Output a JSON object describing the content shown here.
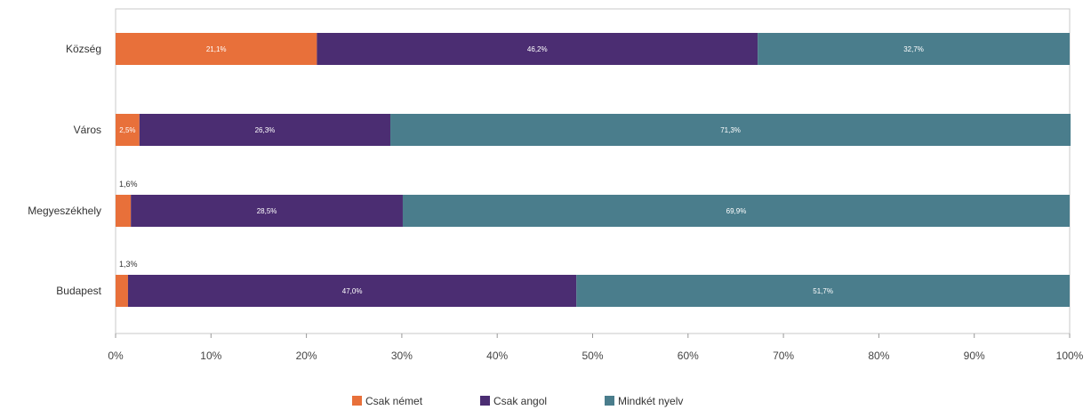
{
  "chart_data": {
    "type": "bar",
    "orientation": "horizontal",
    "stacked": true,
    "percent_stacked": true,
    "categories": [
      "Község",
      "Város",
      "Megyeszékhely",
      "Budapest"
    ],
    "series": [
      {
        "name": "Csak német",
        "color": "#e8703a",
        "values": [
          21.1,
          2.5,
          1.6,
          1.3
        ],
        "labels": [
          "21,1%",
          "2,5%",
          "1,6%",
          "1,3%"
        ]
      },
      {
        "name": "Csak angol",
        "color": "#4b2d72",
        "values": [
          46.2,
          26.3,
          28.5,
          47.0
        ],
        "labels": [
          "46,2%",
          "26,3%",
          "28,5%",
          "47,0%"
        ]
      },
      {
        "name": "Mindkét nyelv",
        "color": "#4a7d8c",
        "values": [
          32.7,
          71.3,
          69.9,
          51.7
        ],
        "labels": [
          "32,7%",
          "71,3%",
          "69,9%",
          "51,7%"
        ]
      }
    ],
    "xlim": [
      0,
      100
    ],
    "x_ticks": [
      "0%",
      "10%",
      "20%",
      "30%",
      "40%",
      "50%",
      "60%",
      "70%",
      "80%",
      "90%",
      "100%"
    ],
    "title": "",
    "xlabel": "",
    "ylabel": "",
    "grid": false,
    "legend_position": "bottom"
  }
}
